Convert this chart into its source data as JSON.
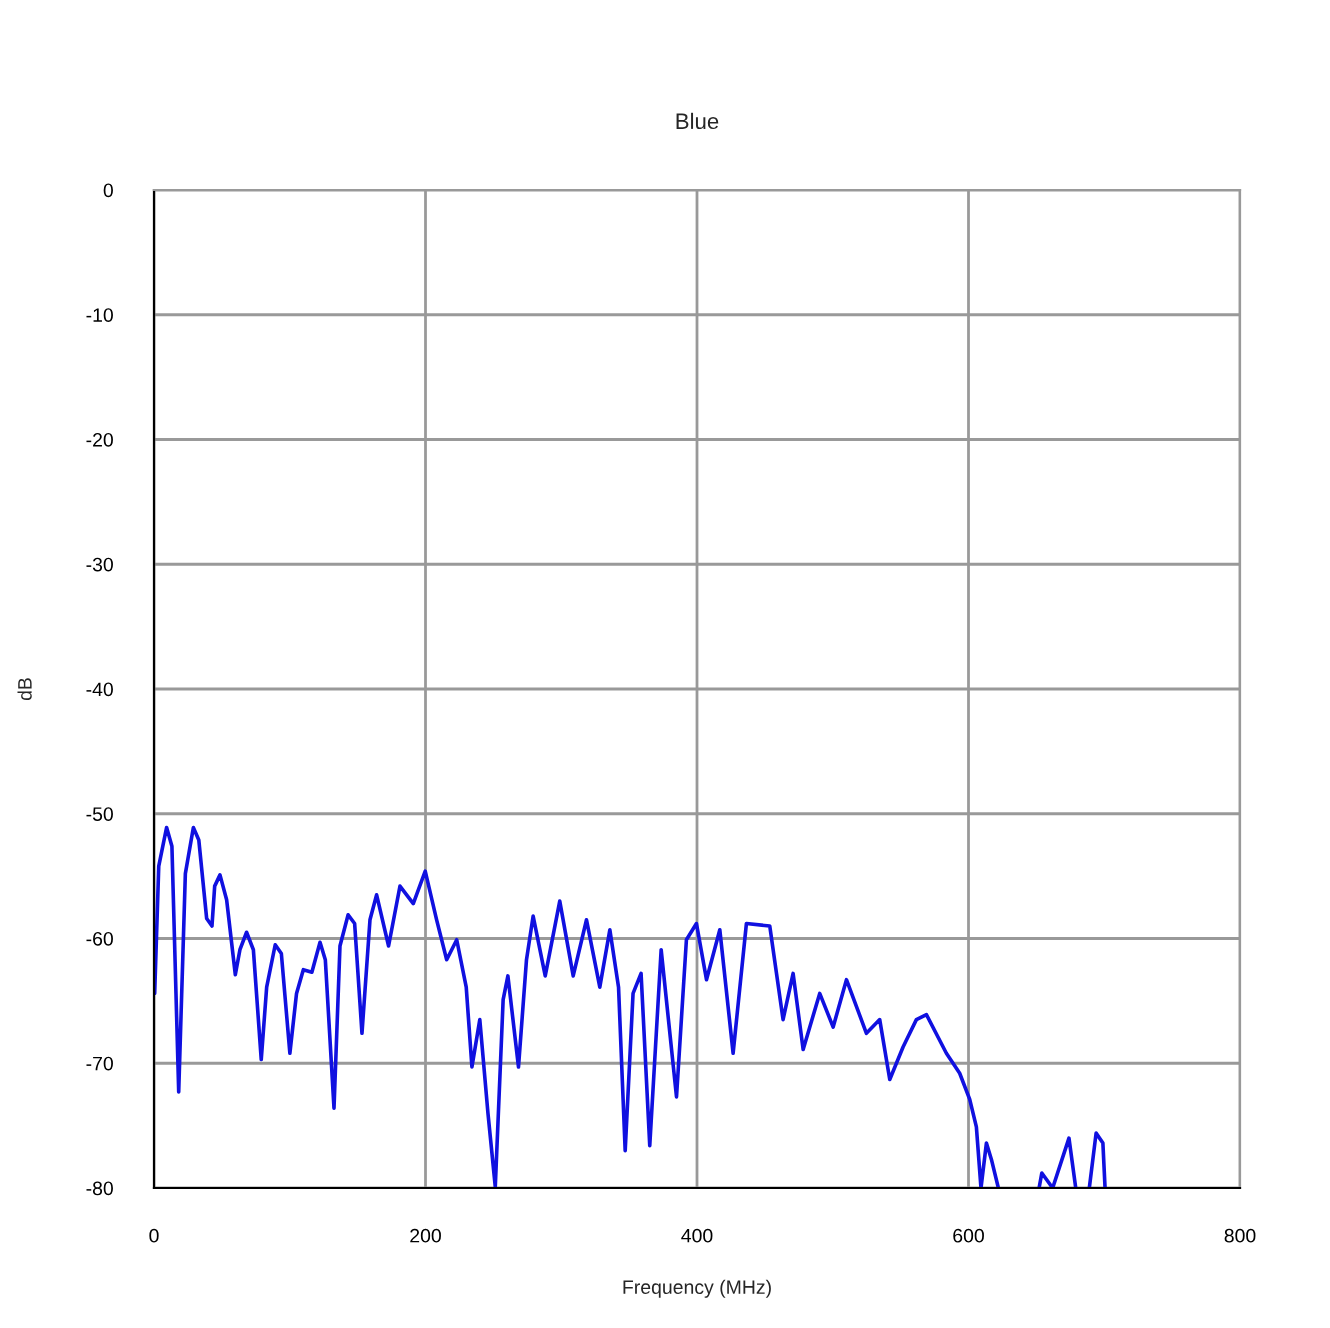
{
  "chart_data": {
    "type": "line",
    "title": "Blue",
    "xlabel": "Frequency (MHz)",
    "ylabel": "dB",
    "xlim": [
      0,
      800
    ],
    "xticks": [
      0,
      200,
      400,
      600,
      800
    ],
    "ylim": [
      -80,
      0
    ],
    "yticks": [
      -80,
      -70,
      -60,
      -50,
      -40,
      -30,
      -20,
      -10,
      0
    ],
    "grid": true,
    "line_style": "solid",
    "marker": "none",
    "series": [
      {
        "color": "#1010e0",
        "x": [
          0.5,
          3.5,
          9.3,
          13.2,
          18.2,
          23.1,
          29,
          33,
          38.8,
          42.7,
          44.7,
          48.6,
          53.5,
          59.9,
          63.3,
          68.2,
          73.2,
          79,
          83,
          89.3,
          93.8,
          100.1,
          105,
          110,
          116.3,
          122.3,
          126.2,
          132.6,
          137,
          143,
          147.8,
          153.2,
          159.1,
          164,
          172.8,
          181.2,
          191,
          199.8,
          208.2,
          215.6,
          223,
          230,
          234.2,
          240,
          246,
          251.4,
          257.2,
          260.7,
          268.5,
          274.4,
          279.3,
          288.2,
          298.9,
          308.8,
          318.6,
          328.4,
          335.8,
          342.2,
          347.1,
          352.9,
          358.8,
          365.2,
          373.6,
          384.9,
          392.2,
          399.6,
          407,
          416.8,
          426.6,
          436.4,
          453.6,
          463.4,
          470.8,
          478.2,
          490.4,
          500.3,
          510.1,
          524.8,
          534.6,
          542,
          551.8,
          561.6,
          569,
          583.7,
          593.5,
          600.9,
          605.8,
          609.2,
          613.2,
          617.1,
          622,
          630,
          652,
          654,
          662,
          674,
          679,
          684,
          689,
          694,
          699,
          700.6
        ],
        "values": [
          -64.4,
          -54.2,
          -51.1,
          -52.6,
          -72.3,
          -54.8,
          -51.1,
          -52.1,
          -58.4,
          -59,
          -55.8,
          -54.9,
          -56.9,
          -62.9,
          -60.9,
          -59.5,
          -60.9,
          -69.7,
          -63.9,
          -60.5,
          -61.2,
          -69.2,
          -64.4,
          -62.5,
          -62.7,
          -60.3,
          -61.7,
          -73.6,
          -60.6,
          -58.1,
          -58.8,
          -67.6,
          -58.5,
          -56.5,
          -60.6,
          -55.8,
          -57.2,
          -54.6,
          -58.5,
          -61.7,
          -60.1,
          -63.9,
          -70.3,
          -66.5,
          -74,
          -79.9,
          -64.9,
          -63,
          -70.3,
          -61.7,
          -58.2,
          -63,
          -57,
          -63,
          -58.5,
          -63.9,
          -59.3,
          -63.9,
          -77,
          -64.4,
          -62.8,
          -76.6,
          -60.9,
          -72.7,
          -60.1,
          -58.8,
          -63.3,
          -59.3,
          -69.2,
          -58.8,
          -59,
          -66.5,
          -62.8,
          -68.9,
          -64.4,
          -67.1,
          -63.3,
          -67.6,
          -66.5,
          -71.3,
          -68.7,
          -66.5,
          -66.1,
          -69.2,
          -70.8,
          -72.9,
          -75.1,
          -80,
          -76.4,
          -77.8,
          -80,
          null,
          -80,
          -78.8,
          -80,
          -76,
          -80,
          null,
          -80,
          -75.6,
          -76.4,
          -80
        ]
      }
    ]
  }
}
